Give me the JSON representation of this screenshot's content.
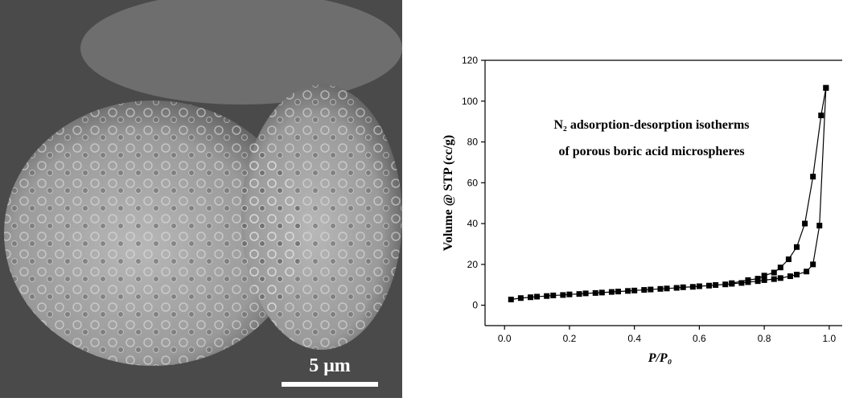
{
  "image_label": "5 μm",
  "chart_data": {
    "type": "line",
    "annotation": [
      "N₂ adsorption-desorption isotherms",
      "of porous boric acid microspheres"
    ],
    "xlabel": "P/P₀",
    "ylabel": "Volume @ STP (cc/g)",
    "xlim": [
      -0.06,
      1.04
    ],
    "ylim": [
      -10,
      120
    ],
    "xticks": [
      {
        "value": 0,
        "label": "0.0"
      },
      0.2,
      0.4,
      0.6,
      0.8,
      {
        "value": 1,
        "label": "1.0"
      }
    ],
    "yticks": [
      0,
      20,
      40,
      60,
      80,
      100,
      120
    ],
    "series": [
      {
        "color": "#000000",
        "x": [
          0.02,
          0.05,
          0.08,
          0.1,
          0.13,
          0.15,
          0.18,
          0.2,
          0.23,
          0.25,
          0.28,
          0.3,
          0.33,
          0.35,
          0.38,
          0.4,
          0.43,
          0.45,
          0.48,
          0.5,
          0.53,
          0.55,
          0.58,
          0.6,
          0.63,
          0.65,
          0.68,
          0.7,
          0.73,
          0.75,
          0.78,
          0.8,
          0.83,
          0.85,
          0.88,
          0.9,
          0.93,
          0.95,
          0.97,
          0.99
        ],
        "values": [
          2.8,
          3.5,
          3.9,
          4.2,
          4.5,
          4.8,
          5.0,
          5.3,
          5.5,
          5.8,
          6.0,
          6.2,
          6.5,
          6.7,
          7.0,
          7.2,
          7.5,
          7.7,
          8.0,
          8.2,
          8.5,
          8.8,
          9.0,
          9.3,
          9.6,
          9.9,
          10.2,
          10.5,
          10.9,
          11.3,
          11.8,
          12.3,
          12.8,
          13.3,
          14.2,
          15,
          16.5,
          20,
          39,
          106.5
        ]
      },
      {
        "color": "#000000",
        "x": [
          0.99,
          0.975,
          0.95,
          0.925,
          0.9,
          0.875,
          0.85,
          0.83,
          0.8,
          0.78,
          0.75,
          0.7
        ],
        "values": [
          106.5,
          93,
          63,
          40,
          28.5,
          22.5,
          18.5,
          16,
          14.5,
          13,
          12.3,
          10.8
        ]
      }
    ]
  }
}
